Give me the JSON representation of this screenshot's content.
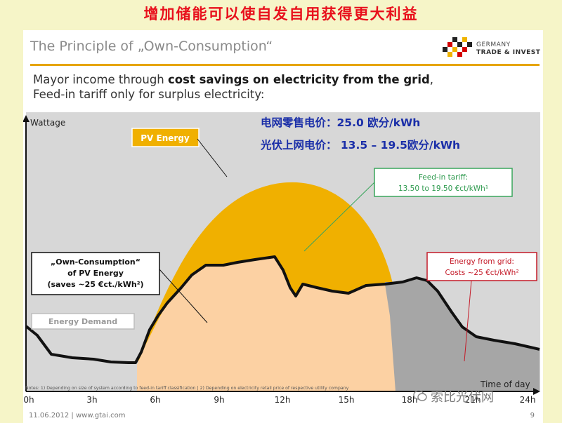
{
  "banner_title": "增加储能可以使自发自用获得更大利益",
  "slide": {
    "heading": "The Principle of „Own-Consumption“",
    "logo": {
      "line1": "GERMANY",
      "line2": "TRADE & INVEST"
    },
    "subtitle": {
      "line1_plain": "Mayor income through ",
      "line1_bold": "cost savings on electricity from the grid",
      "line1_end": ",",
      "line2": "Feed-in tariff only for surplus electricity:"
    },
    "footer": {
      "date": "11.06.2012  |  www.gtai.com",
      "page": "9"
    },
    "note": "Notes: 1) Depending on size of system according to feed-in tariff classification  | 2) Depending on electricity retail price of respective utility company"
  },
  "chart": {
    "y_label": "Wattage",
    "x_label": "Time of day",
    "x_ticks": [
      "0h",
      "3h",
      "6h",
      "9h",
      "12h",
      "15h",
      "18h",
      "21h",
      "24h"
    ],
    "cn_line1": "电网零售电价：25.0 欧分/kWh",
    "cn_line2": "光伏上网电价： 13.5 – 19.5欧分/kWh",
    "pv_label": "PV Energy",
    "feedin_line1": "Feed-in tariff:",
    "feedin_line2": "13.50 to 19.50 €ct/kWh¹",
    "own_line1": "„Own-Consumption“",
    "own_line2": "of PV Energy",
    "own_line3": "(saves ~25 €ct./kWh²)",
    "grid_line1": "Energy from grid:",
    "grid_line2": "Costs ~25 €ct/kWh²",
    "demand_label": "Energy Demand",
    "colors": {
      "pv": "#f0b000",
      "own": "#fcd1a3",
      "grid": "#a6a6a6",
      "bg": "#d7d7d7"
    }
  },
  "watermark": "索比光伏网"
}
